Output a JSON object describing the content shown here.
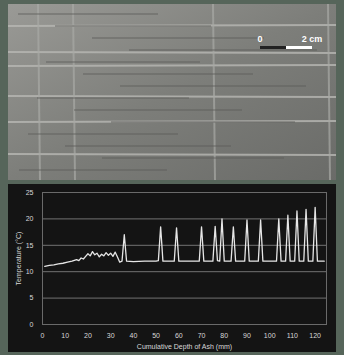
{
  "photo": {
    "scale_bar": {
      "labels": [
        "0",
        "2 cm"
      ]
    }
  },
  "chart_data": {
    "type": "line",
    "x_label": "Cumulative Depth of Ash (mm)",
    "y_label": "Temperature (°C)",
    "x": [
      1,
      3,
      5,
      7,
      9,
      11,
      13,
      15,
      16,
      17,
      18,
      19,
      20,
      21,
      22,
      23,
      24,
      25,
      26,
      27,
      28,
      29,
      30,
      31,
      32,
      33,
      34,
      35,
      36,
      37,
      40,
      45,
      50,
      51,
      52,
      53,
      58,
      59,
      60,
      69,
      70,
      71,
      75,
      76,
      77,
      78,
      79,
      80,
      83,
      84,
      85,
      89,
      90,
      91,
      95,
      96,
      97,
      103,
      104,
      105,
      107,
      108,
      109,
      111,
      112,
      113,
      115,
      116,
      117,
      119,
      120,
      121,
      124
    ],
    "values": [
      11.0,
      11.2,
      11.3,
      11.5,
      11.6,
      11.8,
      12.0,
      12.3,
      12.1,
      12.6,
      12.4,
      12.9,
      13.4,
      13.0,
      13.8,
      13.2,
      13.5,
      12.8,
      13.3,
      13.0,
      13.6,
      13.1,
      13.5,
      12.9,
      13.7,
      12.8,
      11.8,
      12.0,
      17.0,
      12.0,
      11.9,
      12.0,
      12.0,
      12.1,
      18.5,
      12.0,
      12.0,
      18.3,
      12.0,
      12.0,
      18.5,
      12.0,
      12.0,
      18.6,
      12.1,
      12.0,
      20.0,
      12.0,
      12.0,
      18.5,
      12.0,
      12.0,
      19.8,
      12.0,
      12.0,
      19.8,
      12.0,
      12.0,
      20.0,
      12.0,
      12.0,
      20.7,
      12.0,
      12.0,
      21.5,
      12.0,
      12.0,
      21.8,
      12.0,
      12.0,
      22.2,
      12.0,
      12.0
    ],
    "color": "#e6e6e6",
    "xlim": [
      0,
      125
    ],
    "xticks": [
      0,
      10,
      20,
      30,
      40,
      50,
      60,
      70,
      80,
      90,
      100,
      110,
      120
    ],
    "ylim": [
      0,
      25
    ],
    "yticks": [
      0,
      5,
      10,
      15,
      20,
      25
    ],
    "grid": true
  }
}
